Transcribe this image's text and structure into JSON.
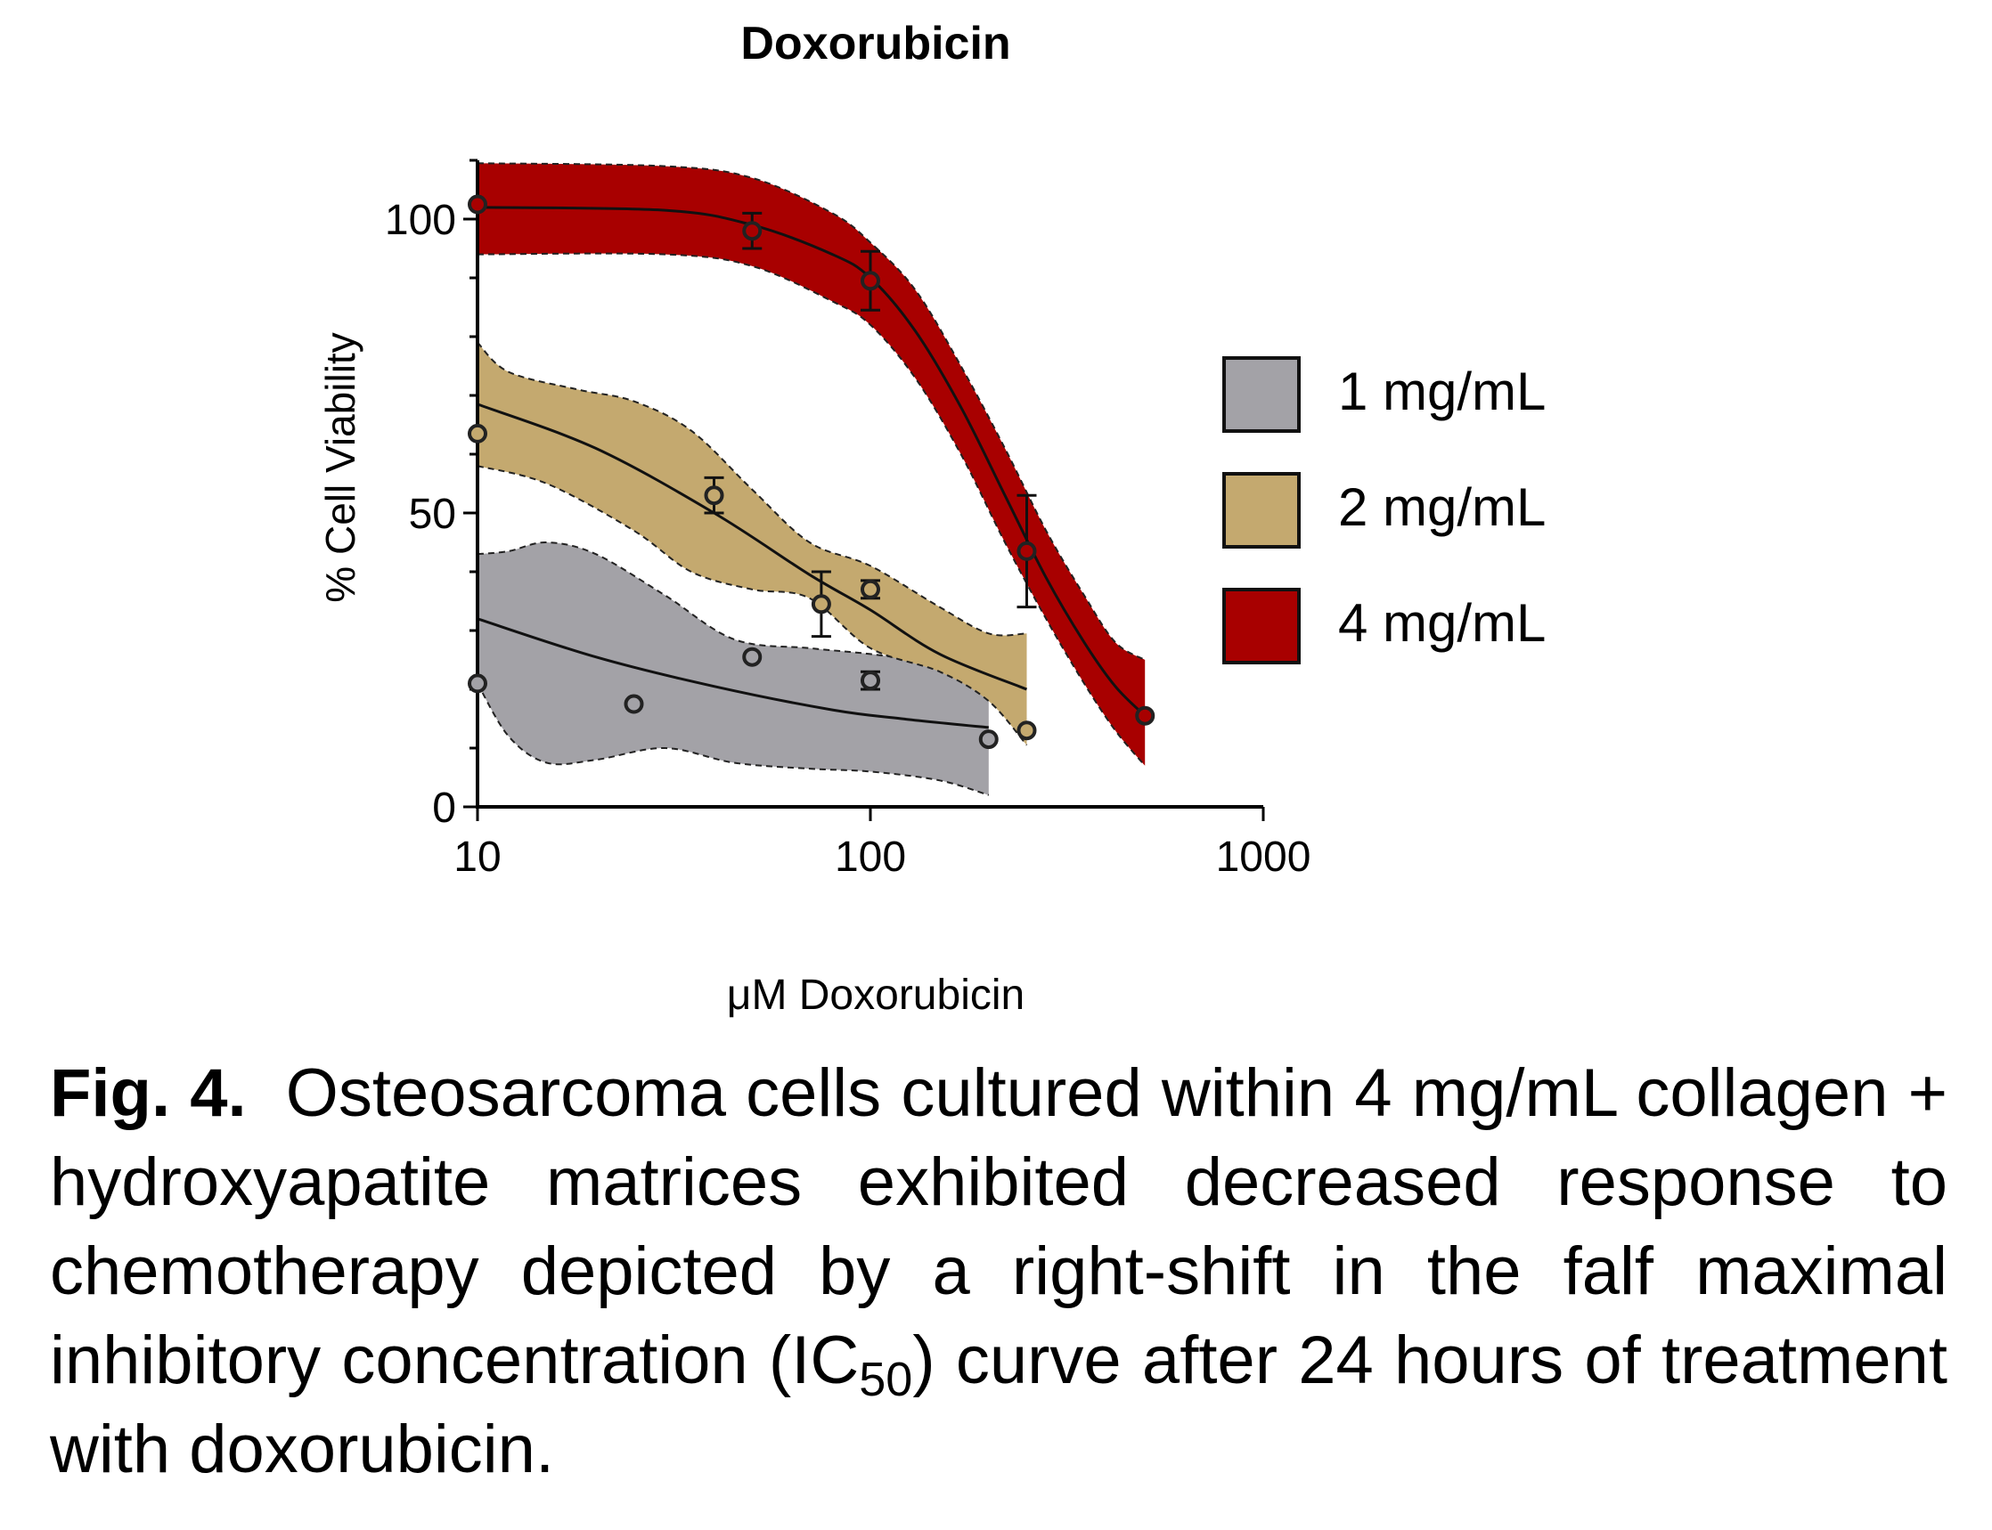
{
  "chart_data": {
    "type": "scatter",
    "title": "Doxorubicin",
    "xlabel": "μM Doxorubicin",
    "ylabel": "% Cell Viability",
    "xscale": "log",
    "xlim": [
      10,
      1000
    ],
    "ylim": [
      0,
      110
    ],
    "xticks": [
      "10",
      "100",
      "1000"
    ],
    "yticks": [
      "0",
      "50",
      "100"
    ],
    "legend_position": "right",
    "series": [
      {
        "name": "1 mg/mL",
        "color": "#a3a2a7",
        "points": [
          {
            "x": 10,
            "y": 21,
            "err": 0
          },
          {
            "x": 25,
            "y": 17.5,
            "err": 0
          },
          {
            "x": 50,
            "y": 25.5,
            "err": 0
          },
          {
            "x": 100,
            "y": 21.5,
            "err": 1.5
          },
          {
            "x": 200,
            "y": 11.5,
            "err": 0
          }
        ],
        "fit": [
          [
            10,
            32
          ],
          [
            20,
            25.5
          ],
          [
            40,
            20.5
          ],
          [
            80,
            16.5
          ],
          [
            120,
            15
          ],
          [
            200,
            13.5
          ]
        ],
        "band_upper": [
          [
            10,
            43
          ],
          [
            12,
            43.5
          ],
          [
            15,
            45
          ],
          [
            20,
            43
          ],
          [
            30,
            36
          ],
          [
            45,
            28.5
          ],
          [
            70,
            27
          ],
          [
            100,
            26
          ],
          [
            150,
            24.5
          ],
          [
            200,
            24.5
          ]
        ],
        "band_lower": [
          [
            10,
            21
          ],
          [
            12,
            12
          ],
          [
            15,
            7.5
          ],
          [
            20,
            8
          ],
          [
            30,
            10
          ],
          [
            45,
            7.5
          ],
          [
            70,
            6.5
          ],
          [
            100,
            6
          ],
          [
            150,
            4.5
          ],
          [
            200,
            2
          ]
        ]
      },
      {
        "name": "2 mg/mL",
        "color": "#c4a96f",
        "points": [
          {
            "x": 10,
            "y": 63.5,
            "err": 0
          },
          {
            "x": 40,
            "y": 53,
            "err": 3
          },
          {
            "x": 75,
            "y": 34.5,
            "err": 5.5
          },
          {
            "x": 100,
            "y": 37,
            "err": 1.5
          },
          {
            "x": 250,
            "y": 13,
            "err": 0
          }
        ],
        "fit": [
          [
            10,
            68.5
          ],
          [
            20,
            61
          ],
          [
            40,
            50
          ],
          [
            70,
            39.5
          ],
          [
            100,
            33.5
          ],
          [
            150,
            26
          ],
          [
            250,
            20
          ]
        ],
        "band_upper": [
          [
            10,
            79
          ],
          [
            12,
            74
          ],
          [
            18,
            71
          ],
          [
            25,
            69
          ],
          [
            35,
            64
          ],
          [
            50,
            54
          ],
          [
            70,
            45
          ],
          [
            100,
            41
          ],
          [
            150,
            34
          ],
          [
            200,
            29.5
          ],
          [
            250,
            29.5
          ]
        ],
        "band_lower": [
          [
            10,
            58
          ],
          [
            15,
            55
          ],
          [
            25,
            47
          ],
          [
            35,
            40
          ],
          [
            50,
            37
          ],
          [
            70,
            35.5
          ],
          [
            100,
            27
          ],
          [
            150,
            23
          ],
          [
            200,
            18
          ],
          [
            250,
            10.5
          ]
        ]
      },
      {
        "name": "4 mg/mL",
        "color": "#a80000",
        "points": [
          {
            "x": 10,
            "y": 102.5,
            "err": 0
          },
          {
            "x": 50,
            "y": 98,
            "err": 3
          },
          {
            "x": 100,
            "y": 89.5,
            "err": 5
          },
          {
            "x": 250,
            "y": 43.5,
            "err": 9.5
          },
          {
            "x": 500,
            "y": 15.5,
            "err": 0
          }
        ],
        "fit": [
          [
            10,
            102
          ],
          [
            30,
            101.5
          ],
          [
            50,
            99
          ],
          [
            80,
            94
          ],
          [
            100,
            90
          ],
          [
            130,
            81
          ],
          [
            170,
            68
          ],
          [
            220,
            53
          ],
          [
            280,
            39
          ],
          [
            350,
            28
          ],
          [
            420,
            20.5
          ],
          [
            500,
            15.5
          ]
        ],
        "band_upper": [
          [
            10,
            109.5
          ],
          [
            30,
            109
          ],
          [
            50,
            107
          ],
          [
            80,
            101
          ],
          [
            100,
            96
          ],
          [
            130,
            88
          ],
          [
            170,
            75
          ],
          [
            220,
            61
          ],
          [
            280,
            47
          ],
          [
            350,
            36
          ],
          [
            420,
            28
          ],
          [
            500,
            25
          ]
        ],
        "band_lower": [
          [
            10,
            94
          ],
          [
            30,
            94
          ],
          [
            50,
            92
          ],
          [
            80,
            86
          ],
          [
            100,
            82
          ],
          [
            130,
            73
          ],
          [
            170,
            60
          ],
          [
            220,
            45
          ],
          [
            280,
            32
          ],
          [
            350,
            21
          ],
          [
            420,
            13
          ],
          [
            500,
            7
          ]
        ]
      }
    ]
  },
  "caption": {
    "label": "Fig. 4.",
    "text_before_sub": "Osteosarcoma cells cultured within 4 mg/mL collagen + hydroxyapatite matrices exhibited decreased response to chemotherapy depicted by a right-shift in the falf maximal inhibitory concentration (IC",
    "sub": "50",
    "text_after_sub": ") curve after 24 hours of treatment with doxorubicin."
  }
}
